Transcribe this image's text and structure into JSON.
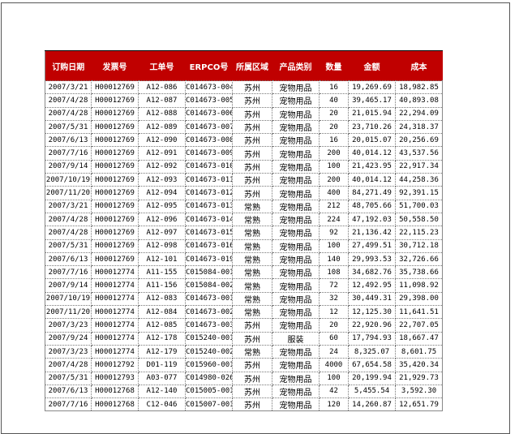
{
  "header_color": "#C00000",
  "columns": [
    "订购日期",
    "发票号",
    "工单号",
    "ERPCO号",
    "所属区域",
    "产品类别",
    "数量",
    "金额",
    "成本"
  ],
  "rows": [
    [
      "2007/3/21",
      "H00012769",
      "A12-086",
      "C014673-004",
      "苏州",
      "宠物用品",
      "16",
      "19,269.69",
      "18,982.85"
    ],
    [
      "2007/4/28",
      "H00012769",
      "A12-087",
      "C014673-005",
      "苏州",
      "宠物用品",
      "40",
      "39,465.17",
      "40,893.08"
    ],
    [
      "2007/4/28",
      "H00012769",
      "A12-088",
      "C014673-006",
      "苏州",
      "宠物用品",
      "20",
      "21,015.94",
      "22,294.09"
    ],
    [
      "2007/5/31",
      "H00012769",
      "A12-089",
      "C014673-007",
      "苏州",
      "宠物用品",
      "20",
      "23,710.26",
      "24,318.37"
    ],
    [
      "2007/6/13",
      "H00012769",
      "A12-090",
      "C014673-008",
      "苏州",
      "宠物用品",
      "16",
      "20,015.07",
      "20,256.69"
    ],
    [
      "2007/7/16",
      "H00012769",
      "A12-091",
      "C014673-009",
      "苏州",
      "宠物用品",
      "200",
      "40,014.12",
      "43,537.56"
    ],
    [
      "2007/9/14",
      "H00012769",
      "A12-092",
      "C014673-010",
      "苏州",
      "宠物用品",
      "100",
      "21,423.95",
      "22,917.34"
    ],
    [
      "2007/10/19",
      "H00012769",
      "A12-093",
      "C014673-011",
      "苏州",
      "宠物用品",
      "200",
      "40,014.12",
      "44,258.36"
    ],
    [
      "2007/11/20",
      "H00012769",
      "A12-094",
      "C014673-012",
      "苏州",
      "宠物用品",
      "400",
      "84,271.49",
      "92,391.15"
    ],
    [
      "2007/3/21",
      "H00012769",
      "A12-095",
      "C014673-013",
      "常熟",
      "宠物用品",
      "212",
      "48,705.66",
      "51,700.03"
    ],
    [
      "2007/4/28",
      "H00012769",
      "A12-096",
      "C014673-014",
      "常熟",
      "宠物用品",
      "224",
      "47,192.03",
      "50,558.50"
    ],
    [
      "2007/4/28",
      "H00012769",
      "A12-097",
      "C014673-015",
      "常熟",
      "宠物用品",
      "92",
      "21,136.42",
      "22,115.23"
    ],
    [
      "2007/5/31",
      "H00012769",
      "A12-098",
      "C014673-016",
      "常熟",
      "宠物用品",
      "100",
      "27,499.51",
      "30,712.18"
    ],
    [
      "2007/6/13",
      "H00012769",
      "A12-101",
      "C014673-019",
      "常熟",
      "宠物用品",
      "140",
      "29,993.53",
      "32,726.66"
    ],
    [
      "2007/7/16",
      "H00012774",
      "A11-155",
      "C015084-001",
      "常熟",
      "宠物用品",
      "108",
      "34,682.76",
      "35,738.66"
    ],
    [
      "2007/9/14",
      "H00012774",
      "A11-156",
      "C015084-002",
      "常熟",
      "宠物用品",
      "72",
      "12,492.95",
      "11,098.92"
    ],
    [
      "2007/10/19",
      "H00012774",
      "A12-083",
      "C014673-001",
      "常熟",
      "宠物用品",
      "32",
      "30,449.31",
      "29,398.00"
    ],
    [
      "2007/11/20",
      "H00012774",
      "A12-084",
      "C014673-002",
      "常熟",
      "宠物用品",
      "12",
      "12,125.30",
      "11,641.51"
    ],
    [
      "2007/3/23",
      "H00012774",
      "A12-085",
      "C014673-003",
      "苏州",
      "宠物用品",
      "20",
      "22,920.96",
      "22,707.05"
    ],
    [
      "2007/9/24",
      "H00012774",
      "A12-178",
      "C015240-001",
      "苏州",
      "服装",
      "60",
      "17,794.93",
      "18,667.47"
    ],
    [
      "2007/3/23",
      "H00012774",
      "A12-179",
      "C015240-002",
      "常熟",
      "宠物用品",
      "24",
      "8,325.07",
      "8,601.75"
    ],
    [
      "2007/4/28",
      "H00012792",
      "D01-119",
      "C015960-001",
      "苏州",
      "宠物用品",
      "4000",
      "67,654.58",
      "35,420.34"
    ],
    [
      "2007/5/31",
      "H00012793",
      "A03-077",
      "C014980-026",
      "苏州",
      "宠物用品",
      "100",
      "20,199.94",
      "21,929.73"
    ],
    [
      "2007/6/13",
      "H00012768",
      "A12-140",
      "C015005-001",
      "苏州",
      "宠物用品",
      "42",
      "5,455.54",
      "3,592.30"
    ],
    [
      "2007/7/16",
      "H00012768",
      "C12-046",
      "C015007-001",
      "苏州",
      "宠物用品",
      "120",
      "14,260.87",
      "12,651.79"
    ]
  ]
}
